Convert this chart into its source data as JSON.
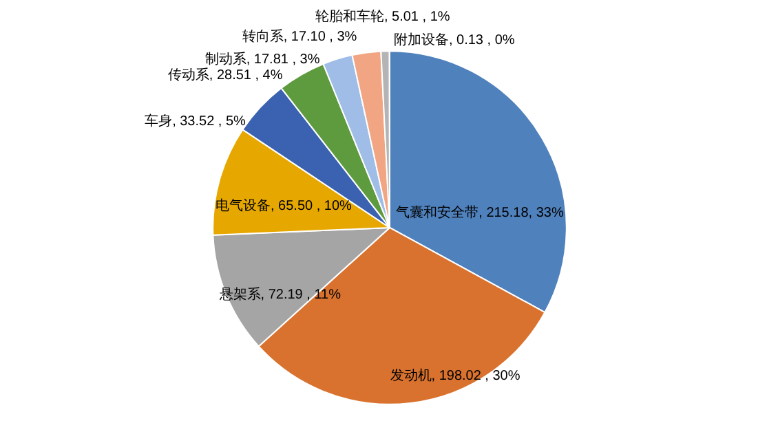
{
  "chart_data": {
    "type": "pie",
    "categories": [
      "气囊和安全带",
      "发动机",
      "悬架系",
      "电气设备",
      "车身",
      "传动系",
      "制动系",
      "转向系",
      "轮胎和车轮",
      "附加设备"
    ],
    "values": [
      215.18,
      198.02,
      72.19,
      65.5,
      33.52,
      28.51,
      17.81,
      17.1,
      5.01,
      0.13
    ],
    "value_labels": [
      "215.18, 33%",
      "198.02 , 30%",
      "72.19 , 11%",
      "65.50 , 10%",
      "33.52 , 5%",
      "28.51 , 4%",
      "17.81 , 3%",
      "17.10 , 3%",
      "5.01 , 1%",
      "0.13 , 0%"
    ],
    "colors": [
      "#4f81bd",
      "#d9722e",
      "#a5a5a5",
      "#e6a800",
      "#3b62b0",
      "#5e9a3e",
      "#9fbde6",
      "#f2a583",
      "#b4b4b4",
      "#c8a96e"
    ]
  }
}
